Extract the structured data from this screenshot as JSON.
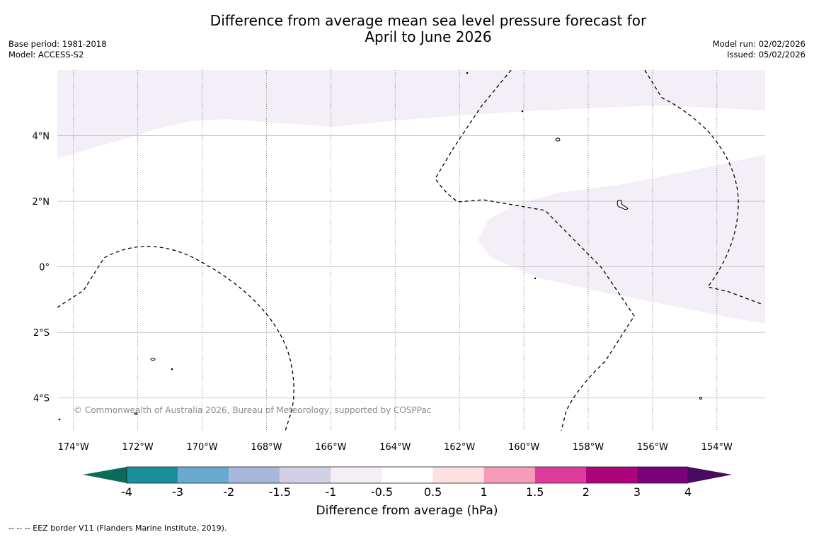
{
  "title": {
    "line1": "Difference from average mean sea level pressure forecast for",
    "line2": "April to June 2026"
  },
  "info_left": {
    "base_period": "Base period: 1981-2018",
    "model": "Model: ACCESS-S2"
  },
  "info_right": {
    "model_run": "Model run: 02/02/2026",
    "issued": "Issued: 05/02/2026"
  },
  "map": {
    "lon_range": [
      -174.5,
      -152.5
    ],
    "lat_range": [
      -5.0,
      6.0
    ],
    "lon_ticks": [
      {
        "value": -174,
        "label": "174°W"
      },
      {
        "value": -172,
        "label": "172°W"
      },
      {
        "value": -170,
        "label": "170°W"
      },
      {
        "value": -168,
        "label": "168°W"
      },
      {
        "value": -166,
        "label": "166°W"
      },
      {
        "value": -164,
        "label": "164°W"
      },
      {
        "value": -162,
        "label": "162°W"
      },
      {
        "value": -160,
        "label": "160°W"
      },
      {
        "value": -158,
        "label": "158°W"
      },
      {
        "value": -156,
        "label": "156°W"
      },
      {
        "value": -154,
        "label": "154°W"
      }
    ],
    "lat_ticks": [
      {
        "value": 4,
        "label": "4°N"
      },
      {
        "value": 2,
        "label": "2°N"
      },
      {
        "value": 0,
        "label": "0°"
      },
      {
        "value": -2,
        "label": "2°S"
      },
      {
        "value": -4,
        "label": "4°S"
      }
    ],
    "anomaly_color": "#f4eef6",
    "copyright": "© Commonwealth of Australia 2026, Bureau of Meteorology, supported by COSPPac"
  },
  "colorbar": {
    "label": "Difference from average (hPa)",
    "low_color": "#0b6b5a",
    "high_color": "#4a0a5e",
    "colors": [
      "#1a8e98",
      "#69a9d1",
      "#a7b8dc",
      "#d2d0e6",
      "#f5eef7",
      "#ffffff",
      "#fde0e1",
      "#f59db8",
      "#dd3c9a",
      "#ad0279",
      "#7a0177"
    ],
    "ticks": [
      "-4",
      "-3",
      "-2",
      "-1.5",
      "-1",
      "-0.5",
      "0.5",
      "1",
      "1.5",
      "2",
      "3",
      "4"
    ]
  },
  "footer": "--  --  -- EEZ border V11 (Flanders Marine Institute, 2019)."
}
